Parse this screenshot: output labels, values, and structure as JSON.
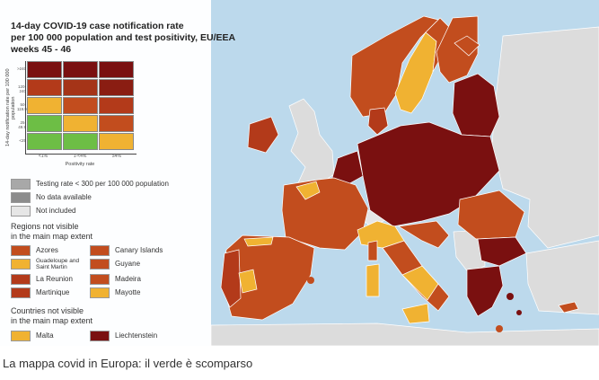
{
  "map": {
    "title_lines": [
      "14-day COVID-19 case notification rate",
      "per 100 000 population and test positivity, EU/EEA",
      "weeks 45 - 46"
    ],
    "y_axis_label": "14-day notification rate per 100 000 population",
    "y_ticks": [
      ">240",
      "120-240",
      "50-119.9",
      "25-49.9",
      "<25"
    ],
    "x_axis_label": "Positivity rate",
    "x_ticks": [
      "<1%",
      "1-<4%",
      "≥4%"
    ],
    "matrix_colors": [
      [
        "#7a1010",
        "#7a1010",
        "#7a1010"
      ],
      [
        "#b33a1a",
        "#a53418",
        "#8a1d12"
      ],
      [
        "#f0b232",
        "#c24d1e",
        "#b33a1a"
      ],
      [
        "#6dbe45",
        "#f0b232",
        "#c24d1e"
      ],
      [
        "#6dbe45",
        "#6dbe45",
        "#f0b232"
      ]
    ],
    "general_legend": [
      {
        "color": "#a8a8a8",
        "label": "Testing rate < 300 per 100 000 population"
      },
      {
        "color": "#8c8c8c",
        "label": "No data available"
      },
      {
        "color": "#e6e6e6",
        "label": "Not included"
      }
    ],
    "regions_title": [
      "Regions not visible",
      "in the main map extent"
    ],
    "regions": [
      {
        "color": "#c24d1e",
        "label": "Azores"
      },
      {
        "color": "#c24d1e",
        "label": "Canary Islands"
      },
      {
        "color": "#f0b232",
        "label": "Guadeloupe and Saint Martin"
      },
      {
        "color": "#c24d1e",
        "label": "Guyane"
      },
      {
        "color": "#b33a1a",
        "label": "La Reunion"
      },
      {
        "color": "#c24d1e",
        "label": "Madeira"
      },
      {
        "color": "#b33a1a",
        "label": "Martinique"
      },
      {
        "color": "#f0b232",
        "label": "Mayotte"
      }
    ],
    "countries_title": [
      "Countries not visible",
      "in the main map extent"
    ],
    "countries": [
      {
        "color": "#f0b232",
        "label": "Malta"
      },
      {
        "color": "#7a1010",
        "label": "Liechtenstein"
      }
    ]
  },
  "caption": "La mappa covid in Europa: il verde è scomparso"
}
